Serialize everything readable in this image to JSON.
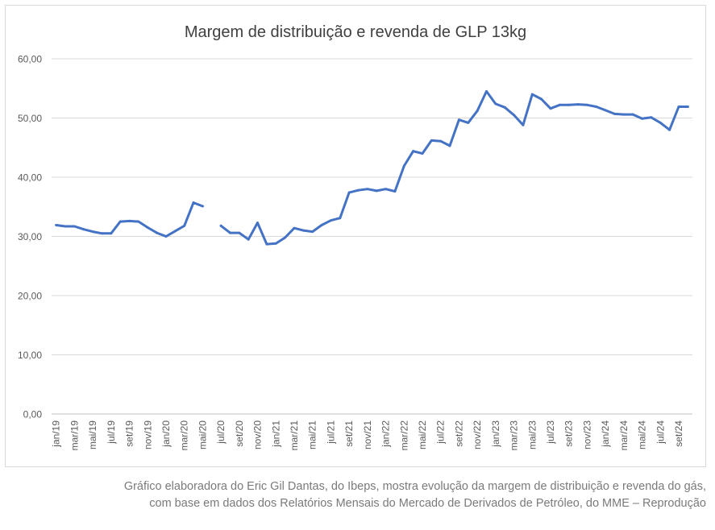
{
  "chart_data": {
    "type": "line",
    "title": "Margem de distribuição e revenda de GLP 13kg",
    "xlabel": "",
    "ylabel": "",
    "ylim": [
      0,
      60
    ],
    "y_ticks": [
      "0,00",
      "10,00",
      "20,00",
      "30,00",
      "40,00",
      "50,00",
      "60,00"
    ],
    "grid": "horizontal",
    "legend": "none",
    "line_color": "#4472c4",
    "x_tick_labels": [
      "jan/19",
      "mar/19",
      "mai/19",
      "jul/19",
      "set/19",
      "nov/19",
      "jan/20",
      "mar/20",
      "mai/20",
      "jul/20",
      "set/20",
      "nov/20",
      "jan/21",
      "mar/21",
      "mai/21",
      "jul/21",
      "set/21",
      "nov/21",
      "jan/22",
      "mar/22",
      "mai/22",
      "jul/22",
      "set/22",
      "nov/22",
      "jan/23",
      "mar/23",
      "mai/23",
      "jul/23",
      "set/23",
      "nov/23",
      "jan/24",
      "mar/24",
      "mai/24",
      "jul/24",
      "set/24"
    ],
    "x": [
      "jan/19",
      "fev/19",
      "mar/19",
      "abr/19",
      "mai/19",
      "jun/19",
      "jul/19",
      "ago/19",
      "set/19",
      "out/19",
      "nov/19",
      "dez/19",
      "jan/20",
      "fev/20",
      "mar/20",
      "abr/20",
      "mai/20",
      "jun/20",
      "jul/20",
      "ago/20",
      "set/20",
      "out/20",
      "nov/20",
      "dez/20",
      "jan/21",
      "fev/21",
      "mar/21",
      "abr/21",
      "mai/21",
      "jun/21",
      "jul/21",
      "ago/21",
      "set/21",
      "out/21",
      "nov/21",
      "dez/21",
      "jan/22",
      "fev/22",
      "mar/22",
      "abr/22",
      "mai/22",
      "jun/22",
      "jul/22",
      "ago/22",
      "set/22",
      "out/22",
      "nov/22",
      "dez/22",
      "jan/23",
      "fev/23",
      "mar/23",
      "abr/23",
      "mai/23",
      "jun/23",
      "jul/23",
      "ago/23",
      "set/23",
      "out/23",
      "nov/23",
      "dez/23",
      "jan/24",
      "fev/24",
      "mar/24",
      "abr/24",
      "mai/24",
      "jun/24",
      "jul/24",
      "ago/24",
      "set/24",
      "out/24"
    ],
    "values": [
      31.9,
      31.7,
      31.7,
      31.2,
      30.8,
      30.5,
      30.5,
      32.5,
      32.6,
      32.5,
      31.5,
      30.6,
      30.0,
      30.9,
      31.8,
      35.7,
      35.1,
      null,
      31.8,
      30.6,
      30.6,
      29.5,
      32.3,
      28.7,
      28.8,
      29.8,
      31.4,
      31.0,
      30.8,
      31.9,
      32.7,
      33.1,
      37.4,
      37.8,
      38.0,
      37.7,
      38.0,
      37.6,
      41.9,
      44.4,
      44.0,
      46.2,
      46.1,
      45.3,
      49.7,
      49.2,
      51.2,
      54.5,
      52.4,
      51.8,
      50.5,
      48.8,
      54.0,
      53.2,
      51.6,
      52.2,
      52.2,
      52.3,
      52.2,
      51.9,
      51.3,
      50.7,
      50.6,
      50.6,
      49.9,
      50.1,
      49.2,
      48.0,
      51.9,
      51.9
    ]
  },
  "caption": {
    "line1": "Gráfico elaboradora do Eric Gil Dantas, do Ibeps, mostra evolução da margem de distribuição e revenda do gás,",
    "line2": "com base em dados dos Relatórios Mensais do Mercado de Derivados de Petróleo, do MME – Reprodução"
  }
}
